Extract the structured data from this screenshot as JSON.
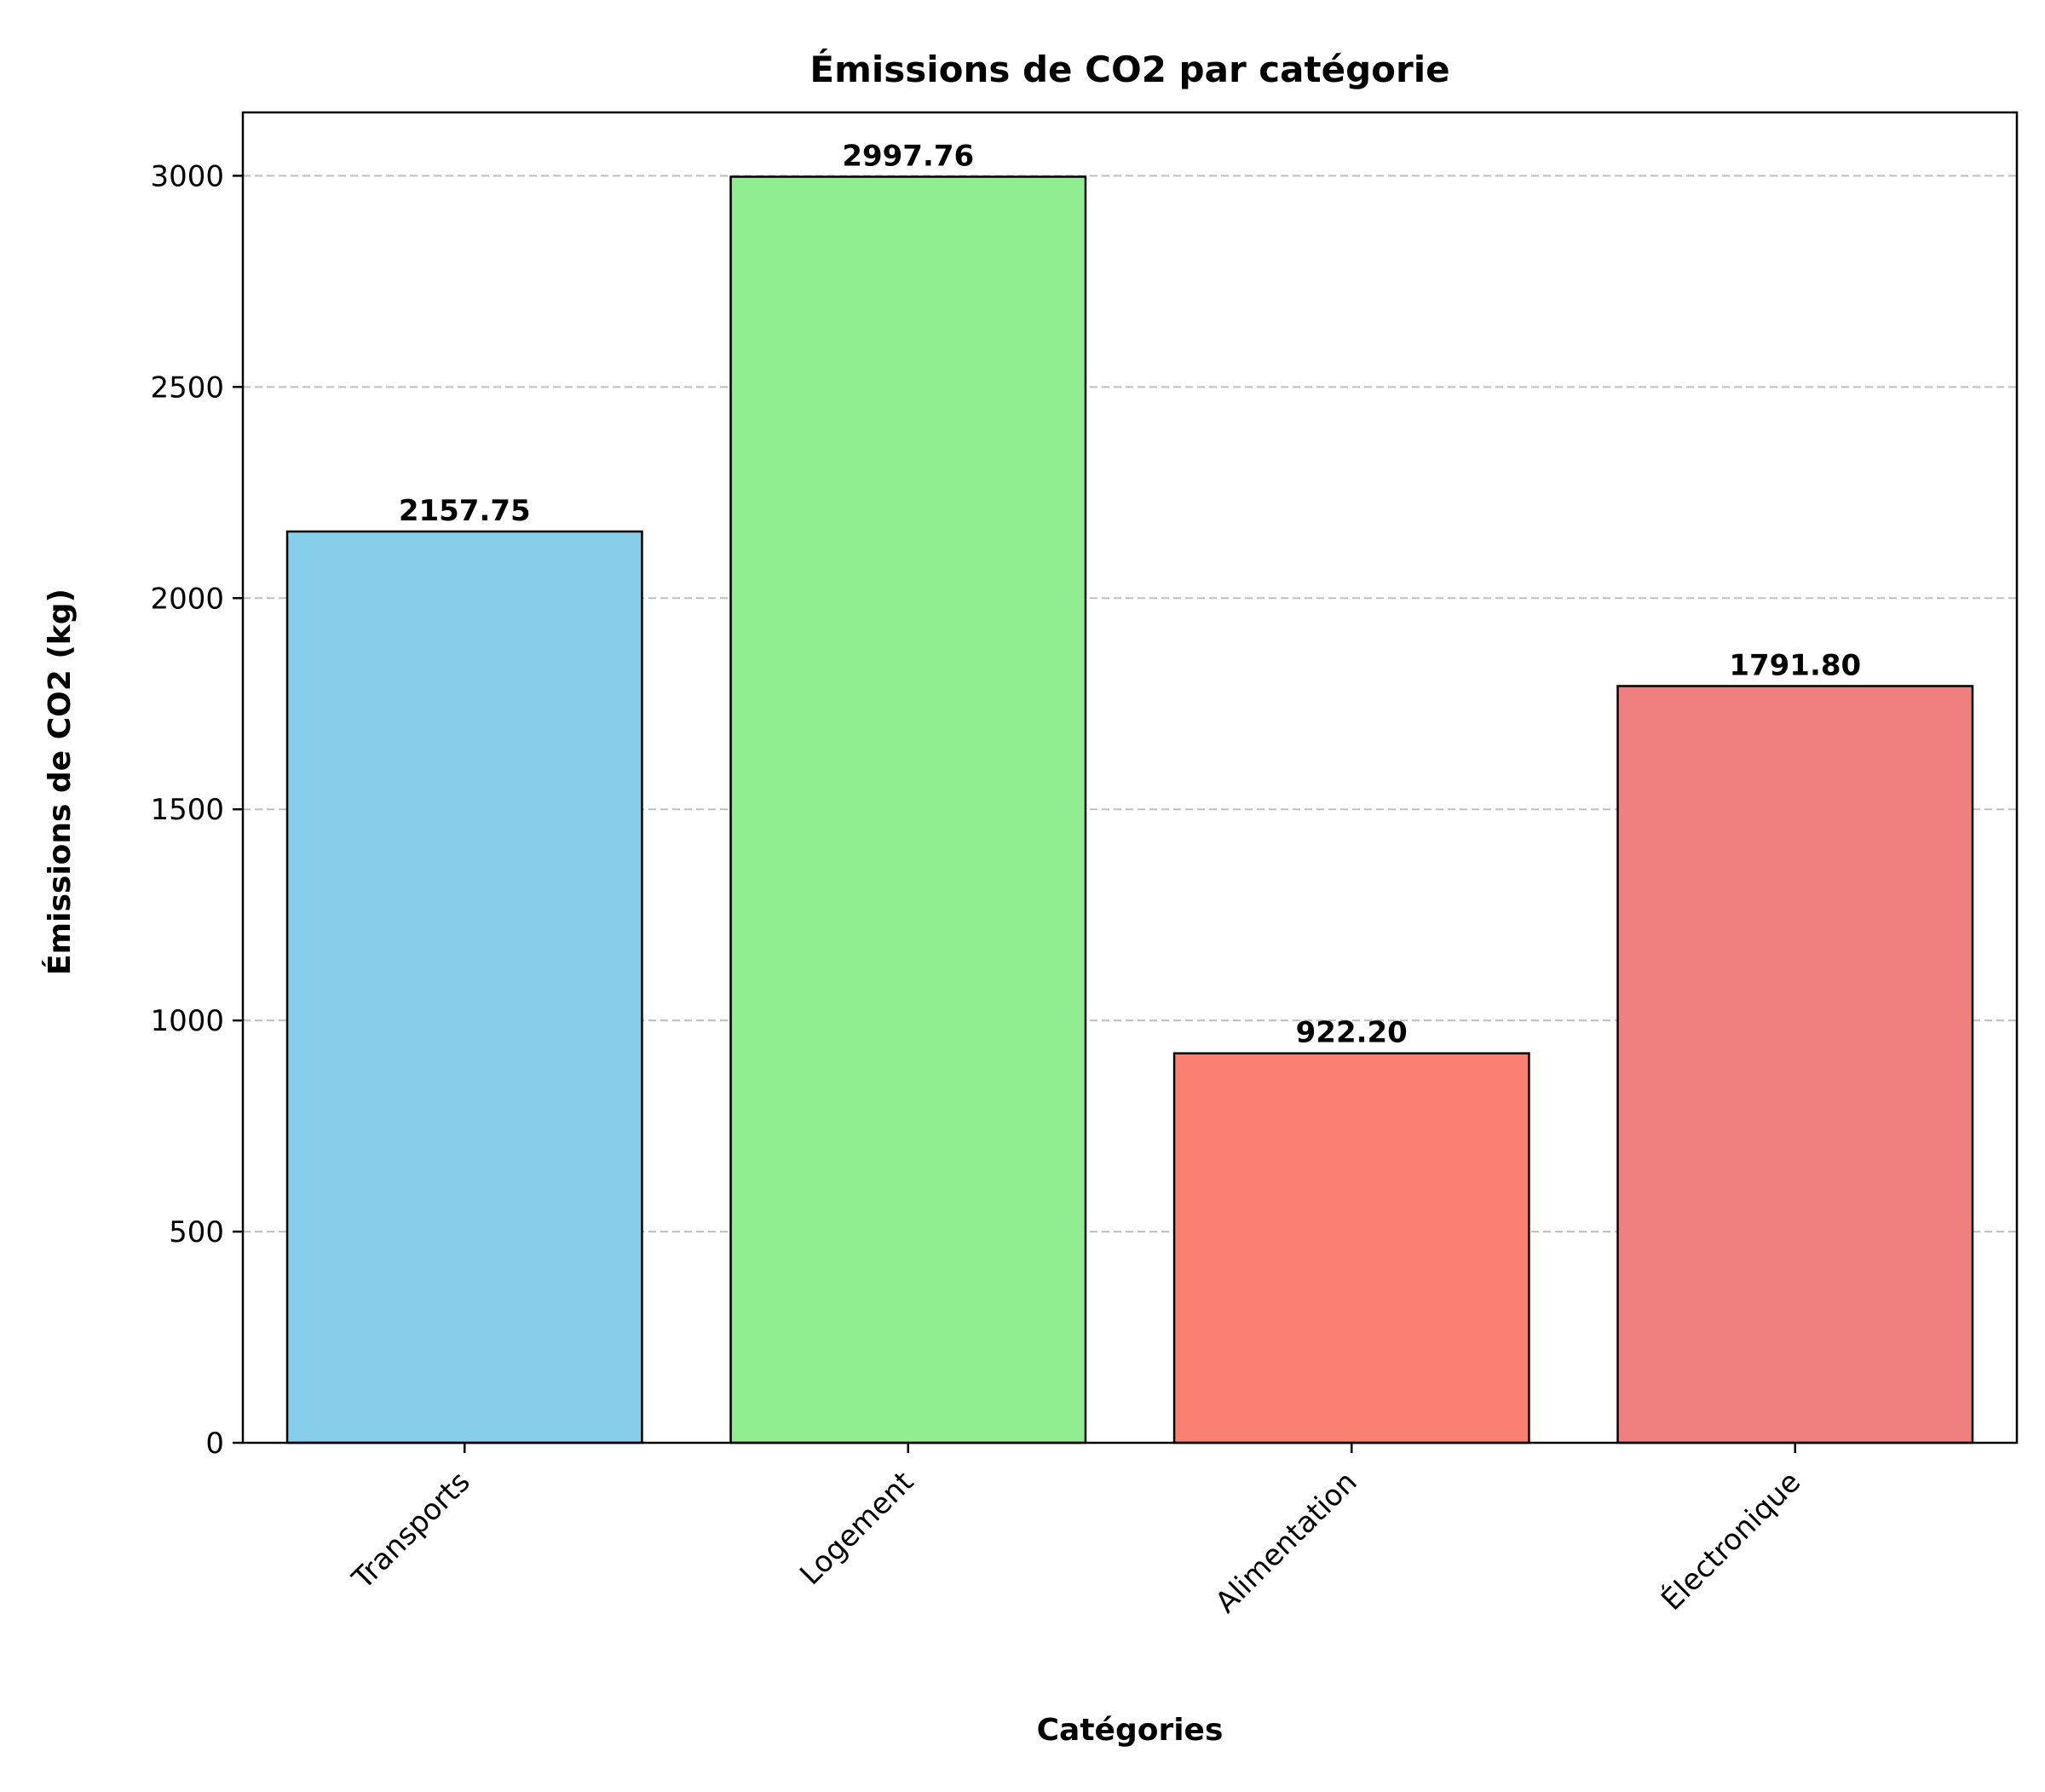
{
  "chart_data": {
    "type": "bar",
    "title": "Émissions de CO2 par catégorie",
    "xlabel": "Catégories",
    "ylabel": "Émissions de CO2 (kg)",
    "categories": [
      "Transports",
      "Logement",
      "Alimentation",
      "Électronique"
    ],
    "values": [
      2157.75,
      2997.76,
      922.2,
      1791.8
    ],
    "value_labels": [
      "2157.75",
      "2997.76",
      "922.20",
      "1791.80"
    ],
    "colors": [
      "#87CEEB",
      "#90EE90",
      "#FA8072",
      "#F08080"
    ],
    "ylim": [
      0,
      3150
    ],
    "yticks": [
      0,
      500,
      1000,
      1500,
      2000,
      2500,
      3000
    ],
    "grid": "y-dashed",
    "bar_edge_color": "#000000",
    "grid_color": "#bfbfbf"
  }
}
